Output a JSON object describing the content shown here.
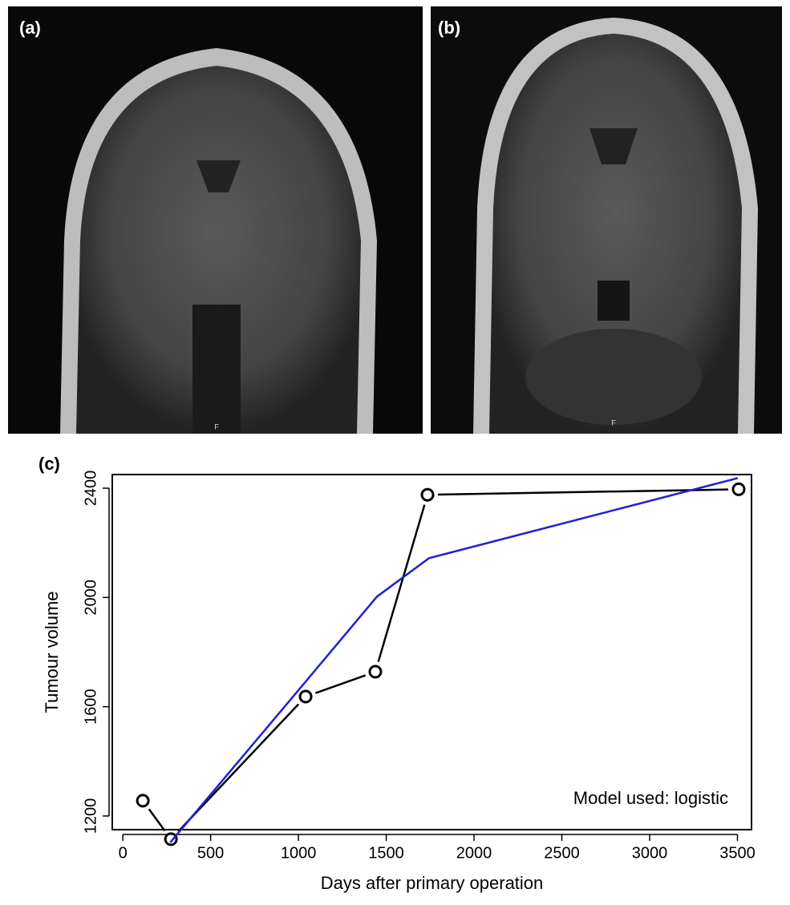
{
  "panels": {
    "a": "(a)",
    "b": "(b)",
    "c": "(c)",
    "marker_a": "F",
    "marker_b": "F"
  },
  "chart_data": {
    "type": "line",
    "xlabel": "Days after primary operation",
    "ylabel": "Tumour volume",
    "annotation": "Model used: logistic",
    "xlim": [
      -60,
      3580
    ],
    "ylim": [
      1150,
      2450
    ],
    "xticks": [
      0,
      500,
      1000,
      1500,
      2000,
      2500,
      3000,
      3500
    ],
    "yticks": [
      1200,
      1600,
      2000,
      2400
    ],
    "series": [
      {
        "color": "#000000",
        "markers": true,
        "x": [
          114,
          274,
          1041,
          1438,
          1735,
          3507
        ],
        "values": [
          1256,
          1115,
          1637,
          1728,
          2376,
          2396
        ]
      },
      {
        "color": "#1f1fd6",
        "markers": false,
        "x": [
          270,
          1027,
          1447,
          1744,
          3502
        ],
        "values": [
          1103,
          1681,
          2003,
          2144,
          2437
        ]
      }
    ]
  }
}
